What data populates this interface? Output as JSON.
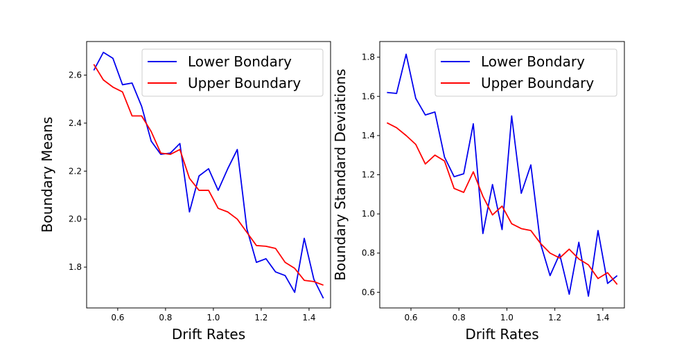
{
  "colors": {
    "lower": "#0000ee",
    "upper": "#ff0000",
    "axes": "#000000",
    "legend_border": "#cccccc"
  },
  "chart_data": [
    {
      "type": "line",
      "xlabel": "Drift Rates",
      "ylabel": "Boundary Means",
      "xlim": [
        0.47,
        1.49
      ],
      "ylim": [
        1.63,
        2.74
      ],
      "xticks": [
        0.6,
        0.8,
        1.0,
        1.2,
        1.4
      ],
      "xtick_labels": [
        "0.6",
        "0.8",
        "1.0",
        "1.2",
        "1.4"
      ],
      "yticks": [
        1.8,
        2.0,
        2.2,
        2.4,
        2.6
      ],
      "ytick_labels": [
        "1.8",
        "2.0",
        "2.2",
        "2.4",
        "2.6"
      ],
      "grid": false,
      "legend_position": "top-right",
      "x": [
        0.5,
        0.54,
        0.58,
        0.62,
        0.66,
        0.7,
        0.74,
        0.78,
        0.82,
        0.86,
        0.9,
        0.94,
        0.98,
        1.02,
        1.06,
        1.1,
        1.14,
        1.18,
        1.22,
        1.26,
        1.3,
        1.34,
        1.38,
        1.42,
        1.46
      ],
      "series": [
        {
          "name": "Lower Bondary",
          "color": "#0000ee",
          "values": [
            2.62,
            2.695,
            2.67,
            2.56,
            2.567,
            2.47,
            2.325,
            2.27,
            2.275,
            2.315,
            2.03,
            2.18,
            2.21,
            2.12,
            2.21,
            2.29,
            1.96,
            1.82,
            1.835,
            1.78,
            1.765,
            1.695,
            1.92,
            1.75,
            1.67
          ]
        },
        {
          "name": "Upper Boundary",
          "color": "#ff0000",
          "values": [
            2.645,
            2.58,
            2.55,
            2.53,
            2.43,
            2.43,
            2.365,
            2.275,
            2.27,
            2.29,
            2.17,
            2.12,
            2.12,
            2.045,
            2.03,
            2.0,
            1.945,
            1.89,
            1.887,
            1.878,
            1.82,
            1.795,
            1.745,
            1.74,
            1.725
          ]
        }
      ]
    },
    {
      "type": "line",
      "xlabel": "Drift Rates",
      "ylabel": "Boundary Standard Deviations",
      "xlim": [
        0.47,
        1.49
      ],
      "ylim": [
        0.52,
        1.88
      ],
      "xticks": [
        0.6,
        0.8,
        1.0,
        1.2,
        1.4
      ],
      "xtick_labels": [
        "0.6",
        "0.8",
        "1.0",
        "1.2",
        "1.4"
      ],
      "yticks": [
        0.6,
        0.8,
        1.0,
        1.2,
        1.4,
        1.6,
        1.8
      ],
      "ytick_labels": [
        "0.6",
        "0.8",
        "1.0",
        "1.2",
        "1.4",
        "1.6",
        "1.8"
      ],
      "grid": false,
      "legend_position": "top-right",
      "x": [
        0.5,
        0.54,
        0.58,
        0.62,
        0.66,
        0.7,
        0.74,
        0.78,
        0.82,
        0.86,
        0.9,
        0.94,
        0.98,
        1.02,
        1.06,
        1.1,
        1.14,
        1.18,
        1.22,
        1.26,
        1.3,
        1.34,
        1.38,
        1.42,
        1.46
      ],
      "series": [
        {
          "name": "Lower Bondary",
          "color": "#0000ee",
          "values": [
            1.62,
            1.615,
            1.815,
            1.59,
            1.505,
            1.52,
            1.29,
            1.19,
            1.205,
            1.46,
            0.9,
            1.15,
            0.92,
            1.5,
            1.105,
            1.25,
            0.85,
            0.685,
            0.795,
            0.59,
            0.855,
            0.58,
            0.915,
            0.645,
            0.685
          ]
        },
        {
          "name": "Upper Boundary",
          "color": "#ff0000",
          "values": [
            1.465,
            1.44,
            1.4,
            1.355,
            1.255,
            1.3,
            1.27,
            1.13,
            1.11,
            1.215,
            1.09,
            0.995,
            1.04,
            0.95,
            0.925,
            0.915,
            0.85,
            0.8,
            0.775,
            0.82,
            0.77,
            0.74,
            0.67,
            0.7,
            0.64
          ]
        }
      ]
    }
  ]
}
